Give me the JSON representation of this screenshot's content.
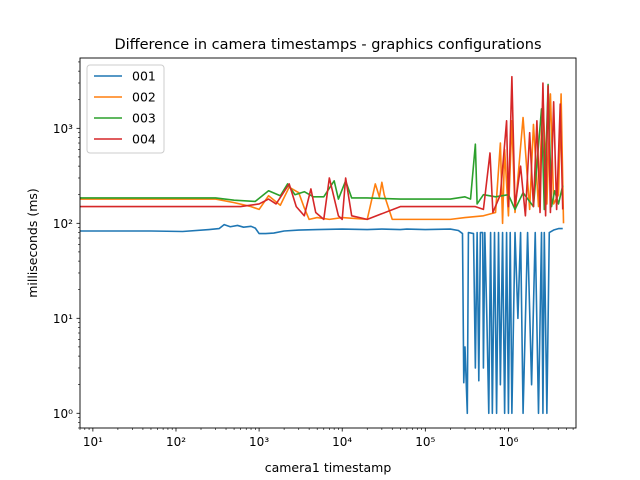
{
  "chart_data": {
    "type": "line",
    "title": "Difference in camera timestamps - graphics configurations",
    "xlabel": "camera1 timestamp",
    "ylabel": "milliseconds (ms)",
    "xscale": "log",
    "yscale": "log",
    "xlim": [
      7,
      6500000
    ],
    "ylim": [
      0.7,
      5500
    ],
    "grid": false,
    "legend_position": "top-left",
    "x_ticks": [
      {
        "value": 10,
        "label": "10¹"
      },
      {
        "value": 100,
        "label": "10²"
      },
      {
        "value": 1000,
        "label": "10³"
      },
      {
        "value": 10000,
        "label": "10⁴"
      },
      {
        "value": 100000,
        "label": "10⁵"
      },
      {
        "value": 1000000,
        "label": "10⁶"
      }
    ],
    "y_ticks": [
      {
        "value": 1,
        "label": "10⁰"
      },
      {
        "value": 10,
        "label": "10¹"
      },
      {
        "value": 100,
        "label": "10²"
      },
      {
        "value": 1000,
        "label": "10³"
      }
    ],
    "series": [
      {
        "name": "001",
        "color": "#1f77b4",
        "points": [
          [
            7,
            83
          ],
          [
            50,
            83
          ],
          [
            120,
            82
          ],
          [
            250,
            86
          ],
          [
            330,
            88
          ],
          [
            380,
            97
          ],
          [
            450,
            92
          ],
          [
            550,
            95
          ],
          [
            650,
            91
          ],
          [
            800,
            93
          ],
          [
            900,
            89
          ],
          [
            1000,
            78
          ],
          [
            1200,
            78
          ],
          [
            1500,
            79
          ],
          [
            2000,
            83
          ],
          [
            3000,
            85
          ],
          [
            5000,
            86
          ],
          [
            10000,
            87
          ],
          [
            20000,
            86
          ],
          [
            30000,
            87
          ],
          [
            50000,
            86
          ],
          [
            60000,
            87
          ],
          [
            100000,
            86
          ],
          [
            200000,
            87
          ],
          [
            250000,
            84
          ],
          [
            280000,
            78
          ],
          [
            290000,
            2.1
          ],
          [
            300000,
            5
          ],
          [
            310000,
            2.2
          ],
          [
            320000,
            1.0
          ],
          [
            330000,
            80
          ],
          [
            380000,
            78
          ],
          [
            400000,
            3
          ],
          [
            420000,
            80
          ],
          [
            440000,
            2.2
          ],
          [
            460000,
            80
          ],
          [
            490000,
            80
          ],
          [
            500000,
            3.0
          ],
          [
            520000,
            80
          ],
          [
            550000,
            10
          ],
          [
            580000,
            1.0
          ],
          [
            610000,
            80
          ],
          [
            640000,
            1.0
          ],
          [
            680000,
            80
          ],
          [
            720000,
            1.0
          ],
          [
            760000,
            80
          ],
          [
            800000,
            2.0
          ],
          [
            850000,
            80
          ],
          [
            900000,
            1.0
          ],
          [
            950000,
            80
          ],
          [
            1000000,
            1.0
          ],
          [
            1050000,
            80
          ],
          [
            1100000,
            1.0
          ],
          [
            1200000,
            80
          ],
          [
            1300000,
            10
          ],
          [
            1400000,
            80
          ],
          [
            1500000,
            1.0
          ],
          [
            1700000,
            80
          ],
          [
            1900000,
            2.0
          ],
          [
            2100000,
            80
          ],
          [
            2300000,
            1.0
          ],
          [
            2500000,
            80
          ],
          [
            2600000,
            1.0
          ],
          [
            2700000,
            80
          ],
          [
            2900000,
            1.0
          ],
          [
            3100000,
            80
          ],
          [
            3500000,
            85
          ],
          [
            4000000,
            88
          ],
          [
            4500000,
            88
          ]
        ]
      },
      {
        "name": "002",
        "color": "#ff7f0e",
        "points": [
          [
            7,
            180
          ],
          [
            100,
            180
          ],
          [
            300,
            180
          ],
          [
            500,
            165
          ],
          [
            800,
            150
          ],
          [
            1000,
            140
          ],
          [
            1300,
            195
          ],
          [
            1800,
            155
          ],
          [
            2300,
            240
          ],
          [
            3000,
            210
          ],
          [
            3500,
            145
          ],
          [
            4000,
            110
          ],
          [
            5000,
            115
          ],
          [
            7000,
            110
          ],
          [
            10000,
            115
          ],
          [
            20000,
            110
          ],
          [
            25000,
            260
          ],
          [
            28000,
            190
          ],
          [
            30000,
            270
          ],
          [
            32000,
            200
          ],
          [
            40000,
            110
          ],
          [
            60000,
            110
          ],
          [
            100000,
            110
          ],
          [
            200000,
            110
          ],
          [
            300000,
            115
          ],
          [
            500000,
            120
          ],
          [
            700000,
            130
          ],
          [
            800000,
            700
          ],
          [
            850000,
            100
          ],
          [
            900000,
            600
          ],
          [
            1000000,
            120
          ],
          [
            1100000,
            1200
          ],
          [
            1200000,
            130
          ],
          [
            1500000,
            1300
          ],
          [
            1800000,
            140
          ],
          [
            2000000,
            1100
          ],
          [
            2300000,
            150
          ],
          [
            2600000,
            2200
          ],
          [
            2900000,
            160
          ],
          [
            3200000,
            2300
          ],
          [
            3500000,
            160
          ],
          [
            4000000,
            200
          ],
          [
            4300000,
            2300
          ],
          [
            4600000,
            100
          ]
        ]
      },
      {
        "name": "003",
        "color": "#2ca02c",
        "points": [
          [
            7,
            185
          ],
          [
            100,
            185
          ],
          [
            300,
            185
          ],
          [
            500,
            175
          ],
          [
            900,
            170
          ],
          [
            1300,
            220
          ],
          [
            1800,
            195
          ],
          [
            2200,
            260
          ],
          [
            2700,
            200
          ],
          [
            3500,
            215
          ],
          [
            4500,
            190
          ],
          [
            6000,
            190
          ],
          [
            8000,
            280
          ],
          [
            9000,
            180
          ],
          [
            11000,
            280
          ],
          [
            13000,
            185
          ],
          [
            20000,
            185
          ],
          [
            50000,
            180
          ],
          [
            100000,
            180
          ],
          [
            200000,
            180
          ],
          [
            300000,
            190
          ],
          [
            350000,
            180
          ],
          [
            400000,
            680
          ],
          [
            420000,
            160
          ],
          [
            500000,
            200
          ],
          [
            700000,
            190
          ],
          [
            1000000,
            200
          ],
          [
            1200000,
            140
          ],
          [
            1500000,
            210
          ],
          [
            2000000,
            150
          ],
          [
            2500000,
            1600
          ],
          [
            2700000,
            140
          ],
          [
            3000000,
            2900
          ],
          [
            3300000,
            150
          ],
          [
            3600000,
            220
          ],
          [
            4000000,
            160
          ],
          [
            4500000,
            250
          ]
        ]
      },
      {
        "name": "004",
        "color": "#d62728",
        "points": [
          [
            7,
            150
          ],
          [
            100,
            150
          ],
          [
            300,
            150
          ],
          [
            600,
            150
          ],
          [
            1000,
            160
          ],
          [
            1300,
            180
          ],
          [
            1600,
            160
          ],
          [
            2300,
            260
          ],
          [
            2800,
            150
          ],
          [
            3500,
            120
          ],
          [
            4200,
            230
          ],
          [
            4800,
            130
          ],
          [
            6000,
            110
          ],
          [
            7000,
            300
          ],
          [
            9000,
            120
          ],
          [
            10000,
            110
          ],
          [
            11000,
            300
          ],
          [
            13000,
            120
          ],
          [
            20000,
            110
          ],
          [
            50000,
            150
          ],
          [
            100000,
            150
          ],
          [
            200000,
            150
          ],
          [
            300000,
            150
          ],
          [
            400000,
            150
          ],
          [
            500000,
            140
          ],
          [
            600000,
            550
          ],
          [
            650000,
            130
          ],
          [
            800000,
            200
          ],
          [
            950000,
            1200
          ],
          [
            1000000,
            150
          ],
          [
            1100000,
            3500
          ],
          [
            1200000,
            150
          ],
          [
            1400000,
            400
          ],
          [
            1600000,
            120
          ],
          [
            1800000,
            900
          ],
          [
            2000000,
            150
          ],
          [
            2200000,
            1200
          ],
          [
            2400000,
            130
          ],
          [
            2600000,
            3000
          ],
          [
            2800000,
            120
          ],
          [
            3000000,
            2800
          ],
          [
            3200000,
            130
          ],
          [
            3500000,
            1900
          ],
          [
            3800000,
            140
          ],
          [
            4200000,
            1800
          ],
          [
            4500000,
            140
          ]
        ]
      }
    ]
  }
}
